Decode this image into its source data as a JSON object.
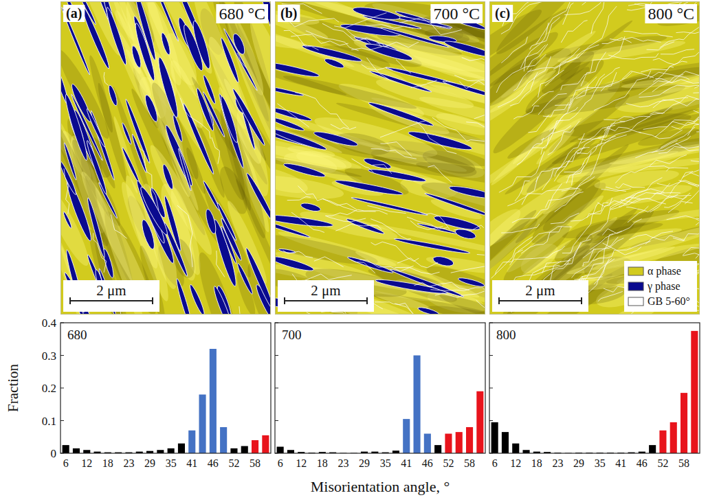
{
  "micrographs": [
    {
      "letter": "(a)",
      "temperature": "680 °C",
      "scale_bar": "2 μm"
    },
    {
      "letter": "(b)",
      "temperature": "700 °C",
      "scale_bar": "2 μm"
    },
    {
      "letter": "(c)",
      "temperature": "800 °C",
      "scale_bar": "2 μm"
    }
  ],
  "micrograph_legend": [
    {
      "name": "α phase",
      "color": "#d2cb1e"
    },
    {
      "name": "γ phase",
      "color": "#0a0a8f"
    },
    {
      "name": "GB 5-60°",
      "color": "#ffffff"
    }
  ],
  "chart_data": [
    {
      "type": "bar",
      "title": "680",
      "ylabel": "Fraction",
      "categories": [
        "6",
        null,
        "12",
        null,
        "18",
        null,
        "23",
        null,
        "29",
        null,
        "35",
        null,
        "41",
        null,
        "46",
        null,
        "52",
        null,
        "58",
        null
      ],
      "values": [
        0.025,
        0.015,
        0.01,
        0.005,
        0.003,
        0.003,
        0.003,
        0.005,
        0.007,
        0.01,
        0.015,
        0.03,
        0.07,
        0.18,
        0.32,
        0.08,
        0.015,
        0.022,
        0.04,
        0.055
      ],
      "colors": [
        "#000000",
        "#000000",
        "#000000",
        "#000000",
        "#000000",
        "#000000",
        "#000000",
        "#000000",
        "#000000",
        "#000000",
        "#000000",
        "#000000",
        "#4472c4",
        "#4472c4",
        "#4472c4",
        "#4472c4",
        "#000000",
        "#000000",
        "#e8141c",
        "#e8141c"
      ],
      "ylim": [
        0,
        0.4
      ],
      "yticks": [
        0,
        0.1,
        0.2,
        0.3,
        0.4
      ]
    },
    {
      "type": "bar",
      "title": "700",
      "xlabel": "Misorientation angle, °",
      "categories": [
        "6",
        null,
        "12",
        null,
        "18",
        null,
        "23",
        null,
        "29",
        null,
        "35",
        null,
        "41",
        null,
        "46",
        null,
        "52",
        null,
        "58",
        null
      ],
      "values": [
        0.02,
        0.01,
        0.004,
        0.002,
        0.004,
        0.003,
        0.001,
        0.001,
        0.005,
        0.005,
        0.003,
        0.008,
        0.105,
        0.3,
        0.06,
        0.025,
        0.06,
        0.065,
        0.08,
        0.19
      ],
      "colors": [
        "#000000",
        "#000000",
        "#000000",
        "#000000",
        "#000000",
        "#000000",
        "#000000",
        "#000000",
        "#000000",
        "#000000",
        "#000000",
        "#000000",
        "#4472c4",
        "#4472c4",
        "#4472c4",
        "#000000",
        "#e8141c",
        "#e8141c",
        "#e8141c",
        "#e8141c"
      ],
      "ylim": [
        0,
        0.4
      ],
      "yticks": [
        0,
        0.1,
        0.2,
        0.3,
        0.4
      ],
      "tick_labels": "x"
    },
    {
      "type": "bar",
      "title": "800",
      "categories": [
        "6",
        null,
        "12",
        null,
        "18",
        null,
        "23",
        null,
        "29",
        null,
        "35",
        null,
        "41",
        null,
        "46",
        null,
        "52",
        null,
        "58",
        null
      ],
      "values": [
        0.095,
        0.065,
        0.03,
        0.01,
        0.005,
        0.004,
        0.002,
        0.001,
        0.002,
        0.002,
        0.002,
        0.002,
        0.002,
        0.003,
        0.005,
        0.025,
        0.07,
        0.095,
        0.185,
        0.375
      ],
      "colors": [
        "#000000",
        "#000000",
        "#000000",
        "#000000",
        "#000000",
        "#000000",
        "#000000",
        "#000000",
        "#000000",
        "#000000",
        "#000000",
        "#000000",
        "#000000",
        "#000000",
        "#000000",
        "#000000",
        "#e8141c",
        "#e8141c",
        "#e8141c",
        "#e8141c"
      ],
      "ylim": [
        0,
        0.4
      ],
      "yticks": [
        0,
        0.1,
        0.2,
        0.3,
        0.4
      ],
      "tick_labels": "x"
    }
  ]
}
